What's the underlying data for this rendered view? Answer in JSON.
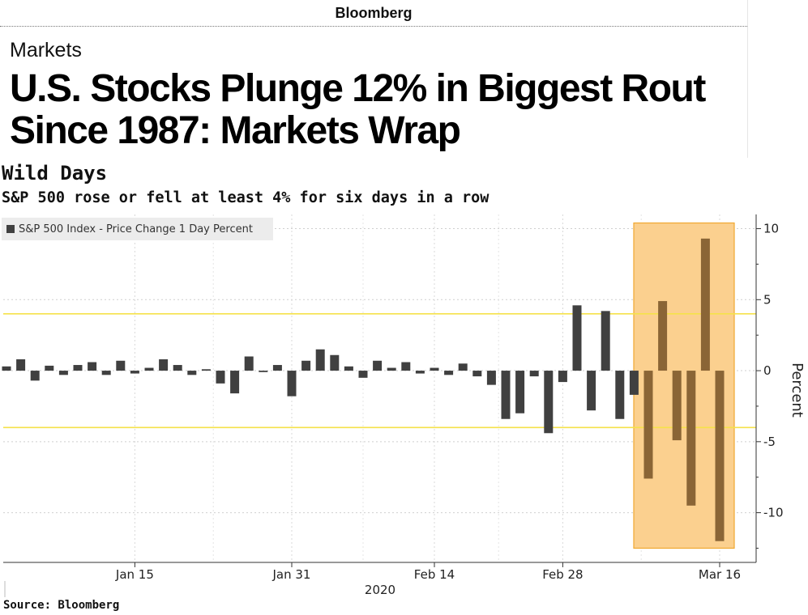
{
  "article": {
    "brand": "Bloomberg",
    "section": "Markets",
    "headline": "U.S. Stocks Plunge 12% in Biggest Rout Since 1987: Markets Wrap"
  },
  "chart_data": {
    "type": "bar",
    "title": "Wild Days",
    "subtitle": "S&P 500 rose or fell at least 4% for six days in a row",
    "legend": "S&P 500 Index - Price Change 1 Day Percent",
    "source": "Source: Bloomberg",
    "ylabel": "Percent",
    "ylim": [
      -13.5,
      11
    ],
    "yticks": [
      10,
      5,
      0,
      -5,
      -10
    ],
    "reference_lines": [
      4,
      -4
    ],
    "x_tick_labels": [
      "Jan 15",
      "Jan 31",
      "Feb 14",
      "Feb 28",
      "Mar 16"
    ],
    "x_year_label": "2020",
    "highlight": {
      "from": "Mar 9",
      "to": "Mar 16",
      "color": "#fbd08f"
    },
    "colors": {
      "bar": "#404040",
      "highlight_bar": "#8a6536",
      "reference_line": "#f5e24a"
    },
    "categories": [
      "Jan 2",
      "Jan 3",
      "Jan 6",
      "Jan 7",
      "Jan 8",
      "Jan 9",
      "Jan 10",
      "Jan 13",
      "Jan 14",
      "Jan 15",
      "Jan 16",
      "Jan 17",
      "Jan 21",
      "Jan 22",
      "Jan 23",
      "Jan 24",
      "Jan 27",
      "Jan 28",
      "Jan 29",
      "Jan 30",
      "Jan 31",
      "Feb 3",
      "Feb 4",
      "Feb 5",
      "Feb 6",
      "Feb 7",
      "Feb 10",
      "Feb 11",
      "Feb 12",
      "Feb 13",
      "Feb 14",
      "Feb 18",
      "Feb 19",
      "Feb 20",
      "Feb 21",
      "Feb 24",
      "Feb 25",
      "Feb 26",
      "Feb 27",
      "Feb 28",
      "Mar 2",
      "Mar 3",
      "Mar 4",
      "Mar 5",
      "Mar 6",
      "Mar 9",
      "Mar 10",
      "Mar 11",
      "Mar 12",
      "Mar 13",
      "Mar 16"
    ],
    "values": [
      0.3,
      0.8,
      -0.7,
      0.35,
      -0.3,
      0.4,
      0.6,
      -0.3,
      0.7,
      -0.2,
      0.2,
      0.8,
      0.4,
      -0.3,
      0.1,
      -0.9,
      -1.6,
      1.0,
      -0.1,
      0.4,
      -1.8,
      0.7,
      1.5,
      1.1,
      0.3,
      -0.5,
      0.7,
      0.2,
      0.6,
      -0.2,
      0.2,
      -0.3,
      0.5,
      -0.4,
      -1.0,
      -3.4,
      -3.0,
      -0.4,
      -4.4,
      -0.8,
      4.6,
      -2.8,
      4.2,
      -3.4,
      -1.7,
      -7.6,
      4.9,
      -4.9,
      -9.5,
      9.3,
      -12.0
    ]
  }
}
